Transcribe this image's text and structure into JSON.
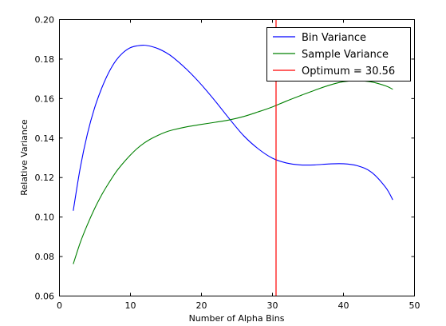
{
  "chart_data": {
    "type": "line",
    "title": "",
    "xlabel": "Number of Alpha Bins",
    "ylabel": "Relative Variance",
    "xlim": [
      0,
      50
    ],
    "ylim": [
      0.06,
      0.2
    ],
    "x_ticks": [
      "0",
      "10",
      "20",
      "30",
      "40",
      "50"
    ],
    "y_ticks": [
      "0.06",
      "0.08",
      "0.10",
      "0.12",
      "0.14",
      "0.16",
      "0.18",
      "0.20"
    ],
    "grid": false,
    "legend_position": "top-right",
    "series": [
      {
        "name": "Bin Variance",
        "color": "#0000ff",
        "x": [
          2,
          3,
          4,
          5,
          6,
          7,
          8,
          9,
          10,
          11,
          12,
          13,
          14,
          15,
          16,
          18,
          20,
          22,
          24,
          26,
          28,
          30,
          32,
          34,
          36,
          38,
          40,
          42,
          44,
          46,
          47
        ],
        "y": [
          0.103,
          0.125,
          0.142,
          0.155,
          0.165,
          0.173,
          0.179,
          0.183,
          0.1855,
          0.1865,
          0.1868,
          0.1862,
          0.185,
          0.1832,
          0.1808,
          0.1745,
          0.167,
          0.1585,
          0.1495,
          0.141,
          0.1345,
          0.1297,
          0.1272,
          0.1262,
          0.1262,
          0.1267,
          0.1268,
          0.1258,
          0.1225,
          0.1148,
          0.1085
        ]
      },
      {
        "name": "Sample Variance",
        "color": "#008000",
        "x": [
          2,
          3,
          4,
          5,
          6,
          7,
          8,
          9,
          10,
          11,
          12,
          13,
          14,
          15,
          16,
          18,
          20,
          22,
          24,
          26,
          28,
          30,
          32,
          34,
          36,
          38,
          40,
          42,
          44,
          46,
          47
        ],
        "y": [
          0.076,
          0.087,
          0.096,
          0.104,
          0.111,
          0.117,
          0.1225,
          0.127,
          0.131,
          0.1345,
          0.1373,
          0.1395,
          0.1413,
          0.1428,
          0.1439,
          0.1455,
          0.1467,
          0.1478,
          0.149,
          0.1507,
          0.153,
          0.1555,
          0.1585,
          0.1613,
          0.164,
          0.1665,
          0.1683,
          0.1688,
          0.1682,
          0.1662,
          0.1645
        ]
      },
      {
        "name": "Optimum = 30.56",
        "color": "#ff0000",
        "vline_x": 30.56
      }
    ]
  }
}
